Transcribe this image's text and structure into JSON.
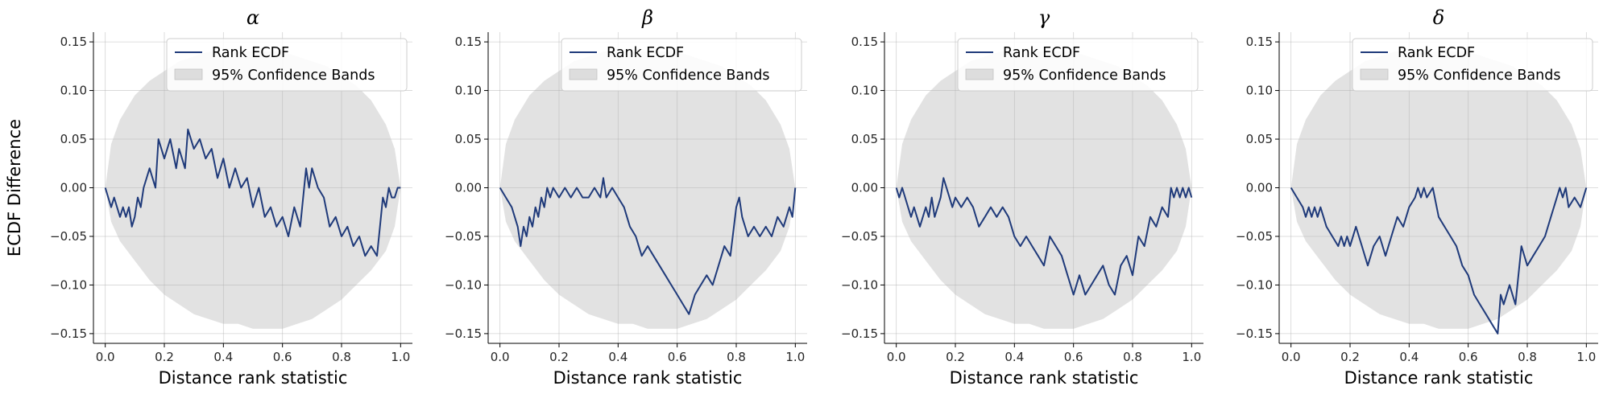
{
  "chart_data": [
    {
      "type": "line",
      "title": "α",
      "xlabel": "Distance rank statistic",
      "ylabel": "ECDF Difference",
      "xlim": [
        -0.04,
        1.04
      ],
      "ylim": [
        -0.16,
        0.16
      ],
      "xticks": [
        0.0,
        0.2,
        0.4,
        0.6,
        0.8,
        1.0
      ],
      "xtick_labels": [
        "0.0",
        "0.2",
        "0.4",
        "0.6",
        "0.8",
        "1.0"
      ],
      "yticks": [
        -0.15,
        -0.1,
        -0.05,
        0.0,
        0.05,
        0.1,
        0.15
      ],
      "ytick_labels": [
        "−0.15",
        "−0.10",
        "−0.05",
        "0.00",
        "0.05",
        "0.10",
        "0.15"
      ],
      "grid": true,
      "legend": {
        "placement": "top-right",
        "line_label": "Rank ECDF",
        "band_label": "95% Confidence Bands"
      },
      "colors": {
        "line": "#1f3a7a",
        "band": "#d3d3d3"
      },
      "series": [
        {
          "name": "Rank ECDF",
          "x": [
            0.0,
            0.02,
            0.03,
            0.04,
            0.05,
            0.06,
            0.07,
            0.08,
            0.09,
            0.1,
            0.11,
            0.12,
            0.13,
            0.15,
            0.17,
            0.18,
            0.2,
            0.22,
            0.24,
            0.25,
            0.27,
            0.28,
            0.3,
            0.32,
            0.34,
            0.36,
            0.38,
            0.4,
            0.42,
            0.44,
            0.46,
            0.48,
            0.5,
            0.52,
            0.54,
            0.56,
            0.58,
            0.6,
            0.62,
            0.64,
            0.66,
            0.68,
            0.69,
            0.7,
            0.72,
            0.74,
            0.76,
            0.78,
            0.8,
            0.82,
            0.84,
            0.86,
            0.88,
            0.9,
            0.92,
            0.93,
            0.94,
            0.95,
            0.96,
            0.97,
            0.98,
            0.99,
            1.0
          ],
          "y": [
            0.0,
            -0.02,
            -0.01,
            -0.02,
            -0.03,
            -0.02,
            -0.03,
            -0.02,
            -0.04,
            -0.03,
            -0.01,
            -0.02,
            0.0,
            0.02,
            0.0,
            0.05,
            0.03,
            0.05,
            0.02,
            0.04,
            0.02,
            0.06,
            0.04,
            0.05,
            0.03,
            0.04,
            0.01,
            0.03,
            0.0,
            0.02,
            0.0,
            0.01,
            -0.02,
            0.0,
            -0.03,
            -0.02,
            -0.04,
            -0.03,
            -0.05,
            -0.02,
            -0.04,
            0.02,
            0.0,
            0.02,
            0.0,
            -0.01,
            -0.04,
            -0.03,
            -0.05,
            -0.04,
            -0.06,
            -0.05,
            -0.07,
            -0.06,
            -0.07,
            -0.04,
            -0.01,
            -0.02,
            0.0,
            -0.01,
            -0.01,
            0.0,
            0.0
          ]
        }
      ],
      "band": {
        "x": [
          0.0,
          0.02,
          0.05,
          0.1,
          0.15,
          0.2,
          0.25,
          0.3,
          0.35,
          0.4,
          0.45,
          0.5,
          0.55,
          0.6,
          0.65,
          0.7,
          0.75,
          0.8,
          0.85,
          0.9,
          0.95,
          0.98,
          1.0
        ],
        "upper": [
          0.0,
          0.045,
          0.07,
          0.095,
          0.11,
          0.12,
          0.13,
          0.135,
          0.14,
          0.14,
          0.14,
          0.14,
          0.14,
          0.14,
          0.135,
          0.13,
          0.125,
          0.115,
          0.105,
          0.09,
          0.065,
          0.04,
          0.0
        ],
        "lower": [
          0.0,
          -0.035,
          -0.055,
          -0.075,
          -0.095,
          -0.11,
          -0.12,
          -0.13,
          -0.135,
          -0.14,
          -0.14,
          -0.145,
          -0.145,
          -0.145,
          -0.14,
          -0.135,
          -0.125,
          -0.115,
          -0.1,
          -0.085,
          -0.065,
          -0.04,
          0.0
        ]
      }
    },
    {
      "type": "line",
      "title": "β",
      "xlabel": "Distance rank statistic",
      "ylabel": "",
      "xlim": [
        -0.04,
        1.04
      ],
      "ylim": [
        -0.16,
        0.16
      ],
      "xticks": [
        0.0,
        0.2,
        0.4,
        0.6,
        0.8,
        1.0
      ],
      "xtick_labels": [
        "0.0",
        "0.2",
        "0.4",
        "0.6",
        "0.8",
        "1.0"
      ],
      "yticks": [
        -0.15,
        -0.1,
        -0.05,
        0.0,
        0.05,
        0.1,
        0.15
      ],
      "ytick_labels": [
        "−0.15",
        "−0.10",
        "−0.05",
        "0.00",
        "0.05",
        "0.10",
        "0.15"
      ],
      "grid": true,
      "legend": {
        "placement": "top-right",
        "line_label": "Rank ECDF",
        "band_label": "95% Confidence Bands"
      },
      "colors": {
        "line": "#1f3a7a",
        "band": "#d3d3d3"
      },
      "series": [
        {
          "name": "Rank ECDF",
          "x": [
            0.0,
            0.02,
            0.04,
            0.06,
            0.07,
            0.08,
            0.09,
            0.1,
            0.11,
            0.12,
            0.13,
            0.14,
            0.15,
            0.16,
            0.17,
            0.18,
            0.2,
            0.22,
            0.24,
            0.26,
            0.28,
            0.3,
            0.32,
            0.34,
            0.35,
            0.36,
            0.38,
            0.4,
            0.42,
            0.44,
            0.46,
            0.48,
            0.5,
            0.52,
            0.54,
            0.56,
            0.58,
            0.6,
            0.62,
            0.64,
            0.66,
            0.68,
            0.7,
            0.72,
            0.74,
            0.76,
            0.78,
            0.8,
            0.81,
            0.82,
            0.84,
            0.86,
            0.88,
            0.9,
            0.92,
            0.94,
            0.96,
            0.98,
            0.99,
            1.0
          ],
          "y": [
            0.0,
            -0.01,
            -0.02,
            -0.04,
            -0.06,
            -0.04,
            -0.05,
            -0.03,
            -0.04,
            -0.02,
            -0.03,
            -0.01,
            -0.02,
            0.0,
            -0.01,
            0.0,
            -0.01,
            0.0,
            -0.01,
            0.0,
            -0.01,
            -0.01,
            0.0,
            -0.01,
            0.01,
            -0.01,
            0.0,
            -0.01,
            -0.02,
            -0.04,
            -0.05,
            -0.07,
            -0.06,
            -0.07,
            -0.08,
            -0.09,
            -0.1,
            -0.11,
            -0.12,
            -0.13,
            -0.11,
            -0.1,
            -0.09,
            -0.1,
            -0.08,
            -0.06,
            -0.07,
            -0.02,
            -0.01,
            -0.03,
            -0.05,
            -0.04,
            -0.05,
            -0.04,
            -0.05,
            -0.03,
            -0.04,
            -0.02,
            -0.03,
            0.0
          ]
        }
      ],
      "band": {
        "x": [
          0.0,
          0.02,
          0.05,
          0.1,
          0.15,
          0.2,
          0.25,
          0.3,
          0.35,
          0.4,
          0.45,
          0.5,
          0.55,
          0.6,
          0.65,
          0.7,
          0.75,
          0.8,
          0.85,
          0.9,
          0.95,
          0.98,
          1.0
        ],
        "upper": [
          0.0,
          0.045,
          0.07,
          0.095,
          0.11,
          0.12,
          0.13,
          0.135,
          0.14,
          0.14,
          0.14,
          0.14,
          0.14,
          0.14,
          0.135,
          0.13,
          0.125,
          0.115,
          0.105,
          0.09,
          0.065,
          0.04,
          0.0
        ],
        "lower": [
          0.0,
          -0.035,
          -0.055,
          -0.075,
          -0.095,
          -0.11,
          -0.12,
          -0.13,
          -0.135,
          -0.14,
          -0.14,
          -0.145,
          -0.145,
          -0.145,
          -0.14,
          -0.135,
          -0.125,
          -0.115,
          -0.1,
          -0.085,
          -0.065,
          -0.04,
          0.0
        ]
      }
    },
    {
      "type": "line",
      "title": "γ",
      "xlabel": "Distance rank statistic",
      "ylabel": "",
      "xlim": [
        -0.04,
        1.04
      ],
      "ylim": [
        -0.16,
        0.16
      ],
      "xticks": [
        0.0,
        0.2,
        0.4,
        0.6,
        0.8,
        1.0
      ],
      "xtick_labels": [
        "0.0",
        "0.2",
        "0.4",
        "0.6",
        "0.8",
        "1.0"
      ],
      "yticks": [
        -0.15,
        -0.1,
        -0.05,
        0.0,
        0.05,
        0.1,
        0.15
      ],
      "ytick_labels": [
        "−0.15",
        "−0.10",
        "−0.05",
        "0.00",
        "0.05",
        "0.10",
        "0.15"
      ],
      "grid": true,
      "legend": {
        "placement": "top-right",
        "line_label": "Rank ECDF",
        "band_label": "95% Confidence Bands"
      },
      "colors": {
        "line": "#1f3a7a",
        "band": "#d3d3d3"
      },
      "series": [
        {
          "name": "Rank ECDF",
          "x": [
            0.0,
            0.01,
            0.02,
            0.04,
            0.05,
            0.06,
            0.08,
            0.1,
            0.11,
            0.12,
            0.13,
            0.14,
            0.15,
            0.16,
            0.18,
            0.19,
            0.2,
            0.22,
            0.24,
            0.26,
            0.28,
            0.3,
            0.32,
            0.34,
            0.36,
            0.38,
            0.4,
            0.42,
            0.44,
            0.46,
            0.48,
            0.5,
            0.52,
            0.54,
            0.56,
            0.58,
            0.6,
            0.62,
            0.64,
            0.66,
            0.68,
            0.7,
            0.72,
            0.74,
            0.76,
            0.78,
            0.8,
            0.82,
            0.84,
            0.86,
            0.88,
            0.9,
            0.92,
            0.93,
            0.94,
            0.95,
            0.96,
            0.97,
            0.98,
            0.99,
            1.0
          ],
          "y": [
            0.0,
            -0.01,
            0.0,
            -0.02,
            -0.03,
            -0.02,
            -0.04,
            -0.02,
            -0.03,
            -0.01,
            -0.03,
            -0.02,
            -0.01,
            0.01,
            -0.01,
            -0.02,
            -0.01,
            -0.02,
            -0.01,
            -0.02,
            -0.04,
            -0.03,
            -0.02,
            -0.03,
            -0.02,
            -0.03,
            -0.05,
            -0.06,
            -0.05,
            -0.06,
            -0.07,
            -0.08,
            -0.05,
            -0.06,
            -0.07,
            -0.09,
            -0.11,
            -0.09,
            -0.11,
            -0.1,
            -0.09,
            -0.08,
            -0.1,
            -0.11,
            -0.08,
            -0.07,
            -0.09,
            -0.05,
            -0.06,
            -0.03,
            -0.04,
            -0.02,
            -0.03,
            0.0,
            -0.01,
            0.0,
            -0.01,
            0.0,
            -0.01,
            0.0,
            -0.01
          ]
        }
      ],
      "band": {
        "x": [
          0.0,
          0.02,
          0.05,
          0.1,
          0.15,
          0.2,
          0.25,
          0.3,
          0.35,
          0.4,
          0.45,
          0.5,
          0.55,
          0.6,
          0.65,
          0.7,
          0.75,
          0.8,
          0.85,
          0.9,
          0.95,
          0.98,
          1.0
        ],
        "upper": [
          0.0,
          0.045,
          0.07,
          0.095,
          0.11,
          0.12,
          0.13,
          0.135,
          0.14,
          0.14,
          0.14,
          0.14,
          0.14,
          0.14,
          0.135,
          0.13,
          0.125,
          0.115,
          0.105,
          0.09,
          0.065,
          0.04,
          0.0
        ],
        "lower": [
          0.0,
          -0.035,
          -0.055,
          -0.075,
          -0.095,
          -0.11,
          -0.12,
          -0.13,
          -0.135,
          -0.14,
          -0.14,
          -0.145,
          -0.145,
          -0.145,
          -0.14,
          -0.135,
          -0.125,
          -0.115,
          -0.1,
          -0.085,
          -0.065,
          -0.04,
          0.0
        ]
      }
    },
    {
      "type": "line",
      "title": "δ",
      "xlabel": "Distance rank statistic",
      "ylabel": "",
      "xlim": [
        -0.04,
        1.04
      ],
      "ylim": [
        -0.16,
        0.16
      ],
      "xticks": [
        0.0,
        0.2,
        0.4,
        0.6,
        0.8,
        1.0
      ],
      "xtick_labels": [
        "0.0",
        "0.2",
        "0.4",
        "0.6",
        "0.8",
        "1.0"
      ],
      "yticks": [
        -0.15,
        -0.1,
        -0.05,
        0.0,
        0.05,
        0.1,
        0.15
      ],
      "ytick_labels": [
        "−0.15",
        "−0.10",
        "−0.05",
        "0.00",
        "0.05",
        "0.10",
        "0.15"
      ],
      "grid": true,
      "legend": {
        "placement": "top-right",
        "line_label": "Rank ECDF",
        "band_label": "95% Confidence Bands"
      },
      "colors": {
        "line": "#1f3a7a",
        "band": "#d3d3d3"
      },
      "series": [
        {
          "name": "Rank ECDF",
          "x": [
            0.0,
            0.02,
            0.04,
            0.05,
            0.06,
            0.07,
            0.08,
            0.09,
            0.1,
            0.12,
            0.14,
            0.16,
            0.17,
            0.18,
            0.19,
            0.2,
            0.22,
            0.24,
            0.26,
            0.28,
            0.3,
            0.32,
            0.34,
            0.36,
            0.38,
            0.4,
            0.42,
            0.43,
            0.44,
            0.45,
            0.46,
            0.48,
            0.5,
            0.52,
            0.54,
            0.56,
            0.58,
            0.6,
            0.62,
            0.64,
            0.66,
            0.68,
            0.7,
            0.71,
            0.72,
            0.74,
            0.76,
            0.78,
            0.8,
            0.82,
            0.84,
            0.86,
            0.88,
            0.9,
            0.91,
            0.92,
            0.93,
            0.94,
            0.96,
            0.98,
            1.0
          ],
          "y": [
            0.0,
            -0.01,
            -0.02,
            -0.03,
            -0.02,
            -0.03,
            -0.02,
            -0.03,
            -0.02,
            -0.04,
            -0.05,
            -0.06,
            -0.05,
            -0.06,
            -0.05,
            -0.06,
            -0.04,
            -0.06,
            -0.08,
            -0.06,
            -0.05,
            -0.07,
            -0.05,
            -0.03,
            -0.04,
            -0.02,
            -0.01,
            0.0,
            -0.01,
            0.0,
            -0.01,
            0.0,
            -0.03,
            -0.04,
            -0.05,
            -0.06,
            -0.08,
            -0.09,
            -0.11,
            -0.12,
            -0.13,
            -0.14,
            -0.15,
            -0.11,
            -0.12,
            -0.1,
            -0.12,
            -0.06,
            -0.08,
            -0.07,
            -0.06,
            -0.05,
            -0.03,
            -0.01,
            0.0,
            -0.01,
            0.0,
            -0.02,
            -0.01,
            -0.02,
            0.0
          ]
        }
      ],
      "band": {
        "x": [
          0.0,
          0.02,
          0.05,
          0.1,
          0.15,
          0.2,
          0.25,
          0.3,
          0.35,
          0.4,
          0.45,
          0.5,
          0.55,
          0.6,
          0.65,
          0.7,
          0.75,
          0.8,
          0.85,
          0.9,
          0.95,
          0.98,
          1.0
        ],
        "upper": [
          0.0,
          0.045,
          0.07,
          0.095,
          0.11,
          0.12,
          0.13,
          0.135,
          0.14,
          0.14,
          0.14,
          0.14,
          0.14,
          0.14,
          0.135,
          0.13,
          0.125,
          0.115,
          0.105,
          0.09,
          0.065,
          0.04,
          0.0
        ],
        "lower": [
          0.0,
          -0.035,
          -0.055,
          -0.075,
          -0.095,
          -0.11,
          -0.12,
          -0.13,
          -0.135,
          -0.14,
          -0.14,
          -0.145,
          -0.145,
          -0.145,
          -0.14,
          -0.135,
          -0.125,
          -0.115,
          -0.1,
          -0.085,
          -0.065,
          -0.04,
          0.0
        ]
      }
    }
  ]
}
